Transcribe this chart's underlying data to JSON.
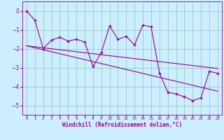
{
  "xlabel": "Windchill (Refroidissement éolien,°C)",
  "bg_color": "#cceeff",
  "line_color": "#990099",
  "x_data": [
    0,
    1,
    2,
    3,
    4,
    5,
    6,
    7,
    8,
    9,
    10,
    11,
    12,
    13,
    14,
    15,
    16,
    17,
    18,
    19,
    20,
    21,
    22,
    23
  ],
  "y_data": [
    0.0,
    -0.5,
    -2.0,
    -1.55,
    -1.4,
    -1.6,
    -1.5,
    -1.65,
    -2.95,
    -2.2,
    -0.8,
    -1.5,
    -1.35,
    -1.8,
    -0.75,
    -0.85,
    -3.3,
    -4.3,
    -4.4,
    -4.55,
    -4.75,
    -4.6,
    -3.2,
    -3.3
  ],
  "trend1_x": [
    0,
    23
  ],
  "trend1_y": [
    -1.85,
    -3.05
  ],
  "trend2_x": [
    0,
    23
  ],
  "trend2_y": [
    -1.85,
    -4.25
  ],
  "ylim": [
    -5.5,
    0.5
  ],
  "xlim": [
    -0.5,
    23.5
  ],
  "yticks": [
    0,
    -1,
    -2,
    -3,
    -4,
    -5
  ],
  "grid_color": "#99ccbb"
}
